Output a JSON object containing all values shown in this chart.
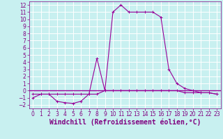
{
  "xlabel": "Windchill (Refroidissement éolien,°C)",
  "xlim": [
    -0.5,
    23.5
  ],
  "ylim": [
    -2.5,
    12.5
  ],
  "yticks": [
    -2,
    -1,
    0,
    1,
    2,
    3,
    4,
    5,
    6,
    7,
    8,
    9,
    10,
    11,
    12
  ],
  "xticks": [
    0,
    1,
    2,
    3,
    4,
    5,
    6,
    7,
    8,
    9,
    10,
    11,
    12,
    13,
    14,
    15,
    16,
    17,
    18,
    19,
    20,
    21,
    22,
    23
  ],
  "bg_color": "#c8f0f0",
  "line_color": "#990099",
  "grid_color": "#ffffff",
  "line1_x": [
    0,
    1,
    2,
    3,
    4,
    5,
    6,
    7,
    8,
    9,
    10,
    11,
    12,
    13,
    14,
    15,
    16,
    17,
    18,
    19,
    20,
    21,
    22,
    23
  ],
  "line1_y": [
    -1.0,
    -0.5,
    -0.5,
    -1.5,
    -1.7,
    -1.8,
    -1.5,
    -0.5,
    4.5,
    0.0,
    11.0,
    12.0,
    11.0,
    11.0,
    11.0,
    11.0,
    10.3,
    3.0,
    1.0,
    0.3,
    0.0,
    -0.3,
    -0.3,
    -0.5
  ],
  "line2_x": [
    0,
    1,
    2,
    3,
    4,
    5,
    6,
    7,
    8,
    9,
    10,
    11,
    12,
    13,
    14,
    15,
    16,
    17,
    18,
    19,
    20,
    21,
    22,
    23
  ],
  "line2_y": [
    -0.5,
    -0.5,
    -0.5,
    -0.5,
    -0.5,
    -0.5,
    -0.5,
    -0.5,
    -0.5,
    0.0,
    0.0,
    0.0,
    0.0,
    0.0,
    0.0,
    0.0,
    0.0,
    0.0,
    0.0,
    -0.3,
    -0.3,
    -0.3,
    -0.3,
    -0.5
  ],
  "font_color": "#800080",
  "tick_fontsize": 5.5,
  "xlabel_fontsize": 7.0
}
